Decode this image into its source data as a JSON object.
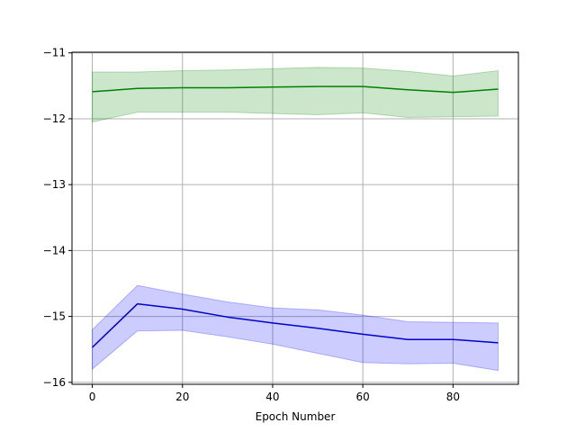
{
  "chart_data": {
    "type": "line",
    "title": "",
    "xlabel": "Epoch Number",
    "ylabel": "",
    "xlim": [
      -4.5,
      94.5
    ],
    "ylim": [
      -16.03,
      -10.99
    ],
    "xticks": [
      0,
      20,
      40,
      60,
      80
    ],
    "xtick_labels": [
      "0",
      "20",
      "40",
      "60",
      "80"
    ],
    "yticks": [
      -16,
      -15,
      -14,
      -13,
      -12,
      -11
    ],
    "ytick_labels": [
      "−16",
      "−15",
      "−14",
      "−13",
      "−12",
      "−11"
    ],
    "grid": true,
    "legend": "none",
    "x": [
      0,
      10,
      20,
      30,
      40,
      50,
      60,
      70,
      80,
      90
    ],
    "series": [
      {
        "color": "#008000",
        "band_color": "#008000",
        "mean": [
          -11.59,
          -11.54,
          -11.53,
          -11.53,
          -11.52,
          -11.51,
          -11.51,
          -11.56,
          -11.6,
          -11.55
        ],
        "upper": [
          -11.29,
          -11.29,
          -11.27,
          -11.26,
          -11.24,
          -11.22,
          -11.23,
          -11.28,
          -11.35,
          -11.27
        ],
        "lower": [
          -12.05,
          -11.9,
          -11.9,
          -11.9,
          -11.92,
          -11.94,
          -11.91,
          -11.98,
          -11.97,
          -11.96
        ]
      },
      {
        "color": "#0000cc",
        "band_color": "#0000ff",
        "mean": [
          -15.47,
          -14.81,
          -14.89,
          -15.01,
          -15.1,
          -15.18,
          -15.27,
          -15.35,
          -15.35,
          -15.4
        ],
        "upper": [
          -15.2,
          -14.53,
          -14.66,
          -14.78,
          -14.87,
          -14.9,
          -14.98,
          -15.08,
          -15.09,
          -15.1
        ],
        "lower": [
          -15.8,
          -15.22,
          -15.21,
          -15.31,
          -15.42,
          -15.56,
          -15.7,
          -15.72,
          -15.71,
          -15.82
        ]
      }
    ]
  }
}
